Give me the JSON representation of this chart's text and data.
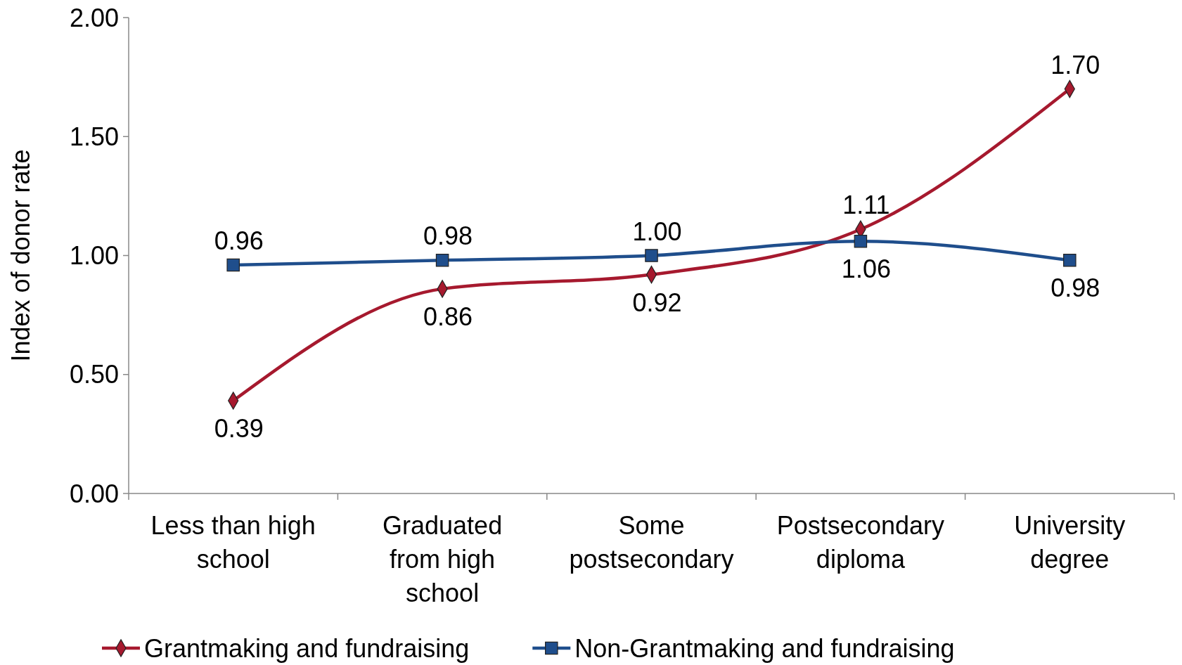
{
  "chart_data": {
    "type": "line",
    "ylabel": "Index of donor rate",
    "categories": [
      "Less than high school",
      "Graduated from high school",
      "Some postsecondary",
      "Postsecondary diploma",
      "University degree"
    ],
    "series": [
      {
        "name": "Grantmaking and fundraising",
        "color": "#a6192e",
        "marker": "diamond",
        "values": [
          0.39,
          0.86,
          0.92,
          1.11,
          1.7
        ],
        "value_labels": [
          "0.39",
          "0.86",
          "0.92",
          "1.11",
          "1.70"
        ]
      },
      {
        "name": "Non-Grantmaking and fundraising",
        "color": "#1f4e8c",
        "marker": "square",
        "values": [
          0.96,
          0.98,
          1.0,
          1.06,
          0.98
        ],
        "value_labels": [
          "0.96",
          "0.98",
          "1.00",
          "1.06",
          "0.98"
        ]
      }
    ],
    "ylim": [
      0,
      2
    ],
    "yticks": [
      {
        "value": 0,
        "label": "0.00"
      },
      {
        "value": 0.5,
        "label": "0.50"
      },
      {
        "value": 1,
        "label": "1.00"
      },
      {
        "value": 1.5,
        "label": "1.50"
      },
      {
        "value": 2,
        "label": "2.00"
      }
    ],
    "legend": "bottom",
    "grid": false
  }
}
